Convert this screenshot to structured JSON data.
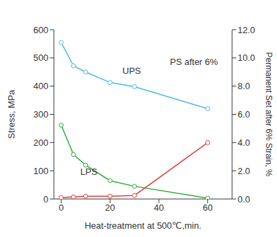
{
  "chart_data": {
    "type": "line",
    "x_label": "Heat-treatment at 500℃,min.",
    "y_label": "Stress, MPa",
    "y2_label": "Permanent Set after 6% Strain, %",
    "x": [
      0,
      5,
      10,
      20,
      30,
      60
    ],
    "xlim": [
      -3,
      70
    ],
    "xticks": [
      0,
      20,
      40,
      60
    ],
    "ylim": [
      0,
      600
    ],
    "yticks": [
      0,
      100,
      200,
      300,
      400,
      500,
      600
    ],
    "y2lim": [
      0,
      12
    ],
    "y2ticks": [
      {
        "value": 0,
        "label": "0.0"
      },
      {
        "value": 2,
        "label": "2.0"
      },
      {
        "value": 4,
        "label": "4.0"
      },
      {
        "value": 6,
        "label": "6.0"
      },
      {
        "value": 8,
        "label": "8.0"
      },
      {
        "value": 10,
        "label": "10.0"
      },
      {
        "value": 12,
        "label": "12.0"
      }
    ],
    "grid": false,
    "series": [
      {
        "name": "UPS",
        "color": "#4cb8e6",
        "marker": "circle",
        "values": [
          555,
          472,
          450,
          413,
          398,
          320
        ]
      },
      {
        "name": "LPS",
        "color": "#2eaa3a",
        "marker": "circle",
        "values": [
          262,
          158,
          120,
          65,
          45,
          3
        ]
      },
      {
        "name": "PS after 6%",
        "color": "#e83a3a",
        "marker": "circle",
        "axis": "y2",
        "values": [
          0.1,
          0.15,
          0.2,
          0.2,
          0.25,
          4.0
        ]
      }
    ]
  }
}
